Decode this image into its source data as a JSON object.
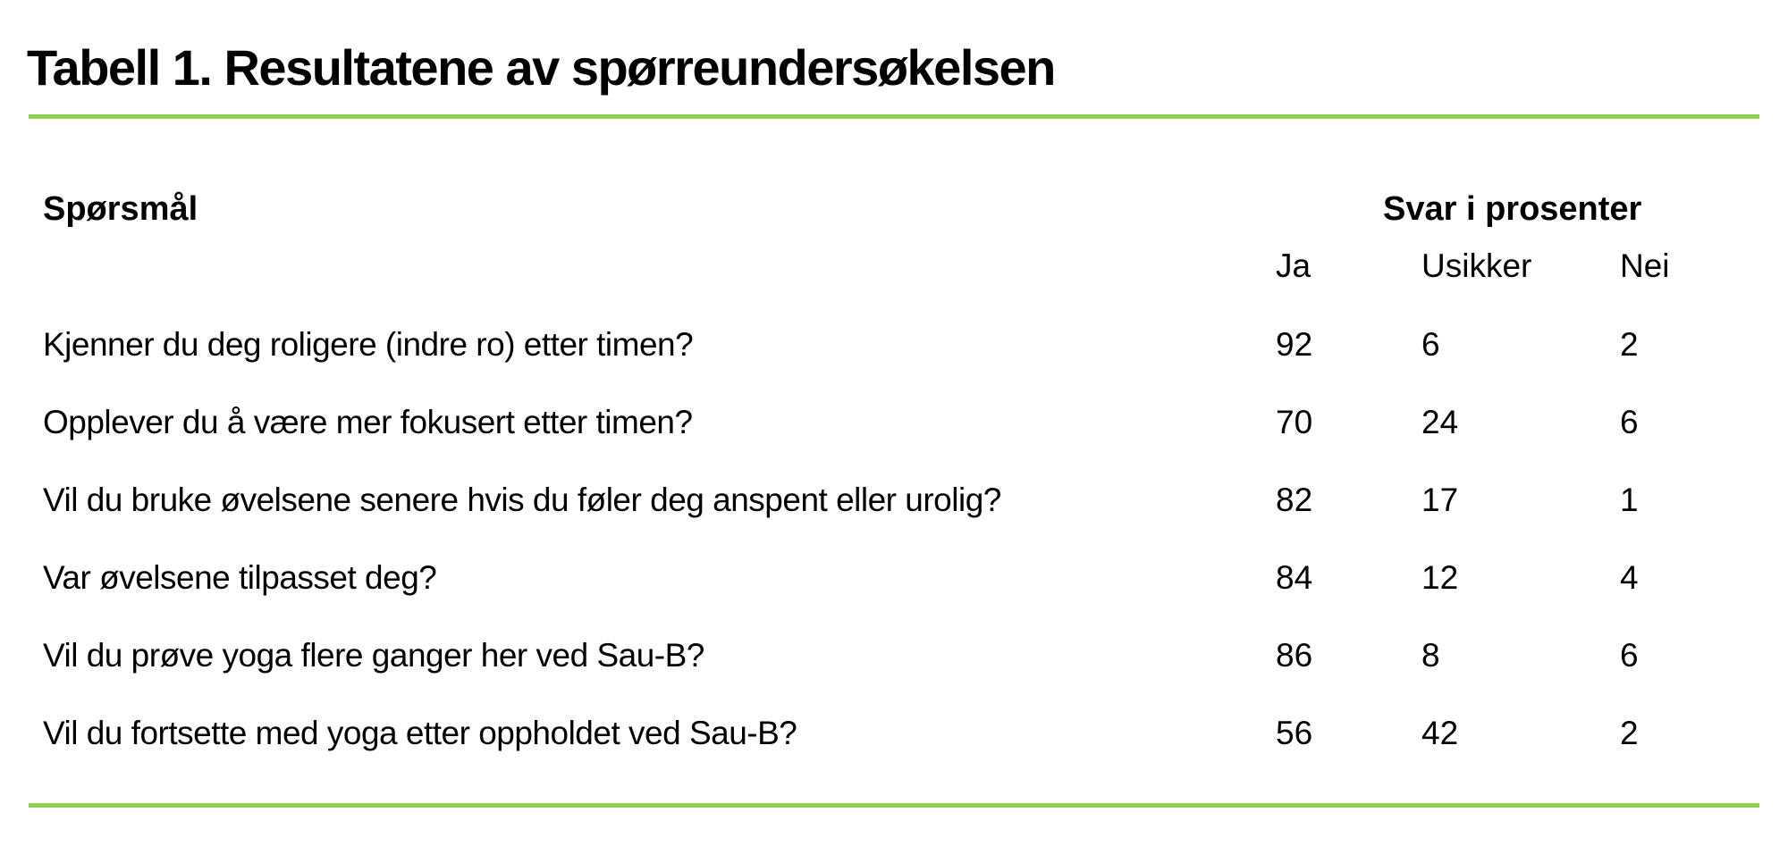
{
  "title": "Tabell 1. Resultatene av spørreundersøkelsen",
  "colors": {
    "rule_green": "#92D050",
    "text": "#000000",
    "background": "#FFFFFF"
  },
  "table": {
    "question_header": "Spørsmål",
    "answers_header": "Svar i prosenter",
    "subheaders": [
      "Ja",
      "Usikker",
      "Nei"
    ],
    "rows": [
      {
        "question": "Kjenner du deg roligere (indre ro) etter timen?",
        "ja": "92",
        "usikker": "6",
        "nei": "2"
      },
      {
        "question": "Opplever du å være mer fokusert etter timen?",
        "ja": "70",
        "usikker": "24",
        "nei": "6"
      },
      {
        "question": "Vil du bruke øvelsene senere hvis du føler deg anspent eller urolig?",
        "ja": "82",
        "usikker": "17",
        "nei": "1"
      },
      {
        "question": "Var øvelsene tilpasset deg?",
        "ja": "84",
        "usikker": "12",
        "nei": "4"
      },
      {
        "question": "Vil du prøve yoga flere ganger her ved Sau-B?",
        "ja": "86",
        "usikker": "8",
        "nei": "6"
      },
      {
        "question": "Vil du fortsette med yoga etter oppholdet ved Sau-B?",
        "ja": "56",
        "usikker": "42",
        "nei": "2"
      }
    ]
  }
}
